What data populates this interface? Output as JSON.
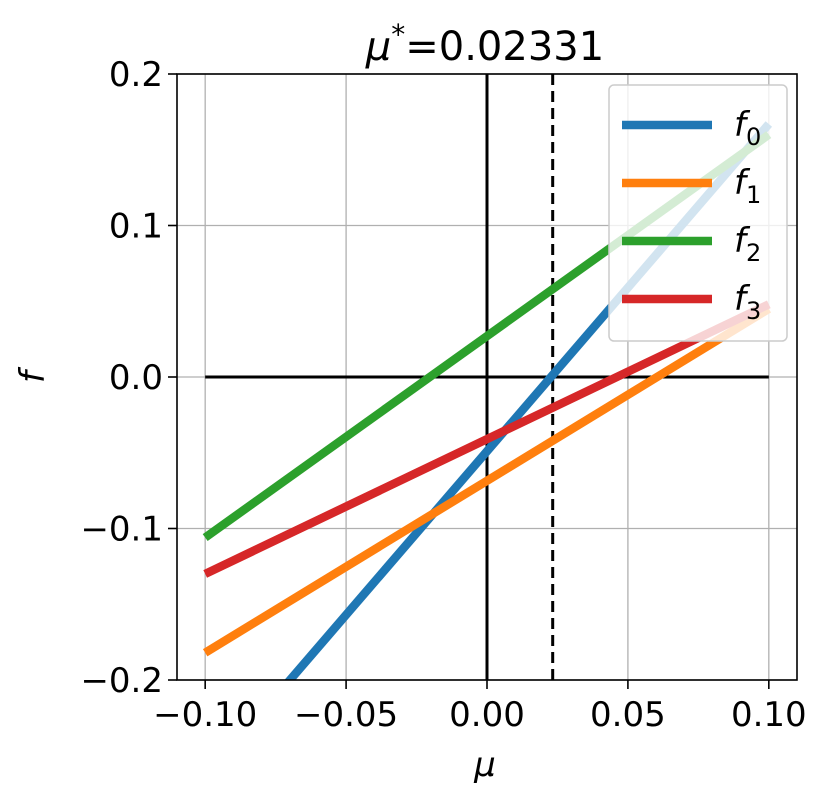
{
  "chart_data": {
    "type": "line",
    "title": "μ*=0.02331",
    "title_parts": {
      "symbol": "μ",
      "sup": "*",
      "rest": "=0.02331"
    },
    "xlabel": "μ",
    "ylabel": "f",
    "xlim": [
      -0.11,
      0.11
    ],
    "ylim": [
      -0.2,
      0.2
    ],
    "xticks": [
      -0.1,
      -0.05,
      0.0,
      0.05,
      0.1
    ],
    "xtick_labels": [
      "−0.10",
      "−0.05",
      "0.00",
      "0.05",
      "0.10"
    ],
    "yticks": [
      -0.2,
      -0.1,
      0.0,
      0.1,
      0.2
    ],
    "ytick_labels": [
      "−0.2",
      "−0.1",
      "0.0",
      "0.1",
      "0.2"
    ],
    "grid": true,
    "legend_position": "upper-right",
    "zero_lines": {
      "horizontal": 0.0,
      "vertical": 0.0,
      "hline_xrange": [
        -0.1,
        0.1
      ]
    },
    "vline_dashed": 0.02331,
    "series": [
      {
        "name": "f0",
        "base": "f",
        "sub": "0",
        "color": "#1f77b4",
        "x": [
          -0.1,
          0.1
        ],
        "y": [
          -0.265,
          0.167
        ]
      },
      {
        "name": "f1",
        "base": "f",
        "sub": "1",
        "color": "#ff7f0e",
        "x": [
          -0.1,
          0.1
        ],
        "y": [
          -0.182,
          0.045
        ]
      },
      {
        "name": "f2",
        "base": "f",
        "sub": "2",
        "color": "#2ca02c",
        "x": [
          -0.1,
          0.1
        ],
        "y": [
          -0.106,
          0.16
        ]
      },
      {
        "name": "f3",
        "base": "f",
        "sub": "3",
        "color": "#d62728",
        "x": [
          -0.1,
          0.1
        ],
        "y": [
          -0.13,
          0.048
        ]
      }
    ]
  }
}
